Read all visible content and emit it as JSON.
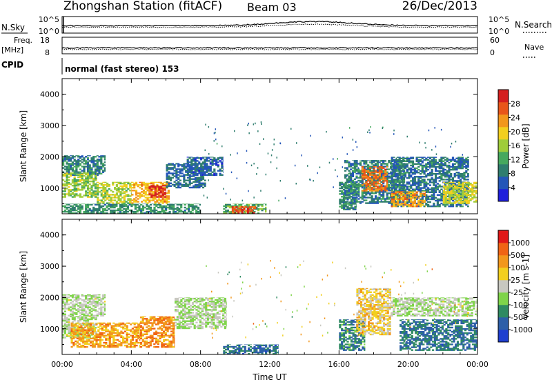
{
  "header": {
    "title": "Zhongshan Station (fitACF)",
    "beam": "Beam 03",
    "date": "26/Dec/2013"
  },
  "noise_panel": {
    "left_label": "N.Sky",
    "right_label": "N.Search",
    "ticks": [
      "10^5",
      "10^0"
    ]
  },
  "freq_panel": {
    "left_label": "Freq.",
    "left_unit": "[MHz]",
    "left_ticks": [
      "18",
      "8"
    ],
    "right_label": "Nave",
    "right_ticks": [
      "60",
      "0"
    ]
  },
  "cpid": {
    "label": "CPID",
    "value": "normal (fast stereo) 153"
  },
  "chart_data": [
    {
      "type": "heatmap",
      "name": "power",
      "ylabel": "Slant Range [km]",
      "xlabel": "",
      "xlim": [
        0,
        24
      ],
      "ylim": [
        180,
        4500
      ],
      "y_ticks": [
        "1000",
        "2000",
        "3000",
        "4000"
      ],
      "colorbar": {
        "label": "Power [dB]",
        "ticks": [
          "28",
          "24",
          "20",
          "16",
          "12",
          "8",
          "4"
        ],
        "colors": [
          "#1f1fdb",
          "#2456b8",
          "#2f7d6e",
          "#46a85e",
          "#9fcc3a",
          "#f2cf1e",
          "#f2971c",
          "#e8561a",
          "#d41f1f"
        ]
      },
      "regions": [
        {
          "t": [
            0.0,
            2.5
          ],
          "r": [
            1400,
            2050
          ],
          "level": 0.28
        },
        {
          "t": [
            0.0,
            2.0
          ],
          "r": [
            700,
            1500
          ],
          "level": 0.48
        },
        {
          "t": [
            2.0,
            4.0
          ],
          "r": [
            500,
            1200
          ],
          "level": 0.52
        },
        {
          "t": [
            4.0,
            6.2
          ],
          "r": [
            500,
            1200
          ],
          "level": 0.68
        },
        {
          "t": [
            5.0,
            6.0
          ],
          "r": [
            700,
            1100
          ],
          "level": 0.95
        },
        {
          "t": [
            6.0,
            8.3
          ],
          "r": [
            1000,
            1800
          ],
          "level": 0.22
        },
        {
          "t": [
            7.2,
            9.3
          ],
          "r": [
            1400,
            2000
          ],
          "level": 0.2
        },
        {
          "t": [
            0.0,
            8.0
          ],
          "r": [
            180,
            500
          ],
          "level": 0.32
        },
        {
          "t": [
            9.3,
            11.8
          ],
          "r": [
            180,
            500
          ],
          "level": 0.4
        },
        {
          "t": [
            9.8,
            11.2
          ],
          "r": [
            200,
            420
          ],
          "level": 0.85
        },
        {
          "t": [
            16.0,
            17.0
          ],
          "r": [
            300,
            1200
          ],
          "level": 0.3
        },
        {
          "t": [
            16.3,
            19.8
          ],
          "r": [
            500,
            1900
          ],
          "level": 0.28
        },
        {
          "t": [
            17.3,
            18.8
          ],
          "r": [
            900,
            1700
          ],
          "level": 0.78
        },
        {
          "t": [
            19.0,
            23.5
          ],
          "r": [
            400,
            2000
          ],
          "level": 0.25
        },
        {
          "t": [
            19.0,
            21.0
          ],
          "r": [
            400,
            900
          ],
          "level": 0.7
        },
        {
          "t": [
            22.0,
            24.0
          ],
          "r": [
            500,
            1200
          ],
          "level": 0.55
        }
      ]
    },
    {
      "type": "heatmap",
      "name": "velocity",
      "ylabel": "Slant Range [km]",
      "xlabel": "Time UT",
      "xlim": [
        0,
        24
      ],
      "ylim": [
        180,
        4500
      ],
      "x_ticks": [
        "00:00",
        "04:00",
        "08:00",
        "12:00",
        "16:00",
        "20:00",
        "00:00"
      ],
      "y_ticks": [
        "1000",
        "2000",
        "3000",
        "4000"
      ],
      "colorbar": {
        "label": "Velocity [m s-1]",
        "ticks": [
          "1000",
          "500",
          "100",
          "25",
          "-25",
          "-100",
          "-500",
          "-1000"
        ],
        "colors": [
          "#1f3fcf",
          "#2d5fa8",
          "#2f8a62",
          "#7fd44a",
          "#c8c8c0",
          "#f2cf1e",
          "#f2971c",
          "#f06414",
          "#e01818"
        ]
      },
      "regions": [
        {
          "t": [
            0.0,
            2.5
          ],
          "r": [
            1400,
            2100
          ],
          "level": 0.45
        },
        {
          "t": [
            0.0,
            2.0
          ],
          "r": [
            700,
            1400
          ],
          "level": 0.45
        },
        {
          "t": [
            0.5,
            4.5
          ],
          "r": [
            400,
            1200
          ],
          "level": 0.7
        },
        {
          "t": [
            4.5,
            6.5
          ],
          "r": [
            400,
            1400
          ],
          "level": 0.75
        },
        {
          "t": [
            6.5,
            9.5
          ],
          "r": [
            1000,
            2000
          ],
          "level": 0.45
        },
        {
          "t": [
            9.3,
            12.5
          ],
          "r": [
            180,
            500
          ],
          "level": 0.2
        },
        {
          "t": [
            16.0,
            17.5
          ],
          "r": [
            300,
            1300
          ],
          "level": 0.25
        },
        {
          "t": [
            17.0,
            19.0
          ],
          "r": [
            800,
            2300
          ],
          "level": 0.6
        },
        {
          "t": [
            19.0,
            24.0
          ],
          "r": [
            1400,
            2000
          ],
          "level": 0.45
        },
        {
          "t": [
            19.5,
            24.0
          ],
          "r": [
            300,
            1300
          ],
          "level": 0.22
        }
      ]
    }
  ]
}
